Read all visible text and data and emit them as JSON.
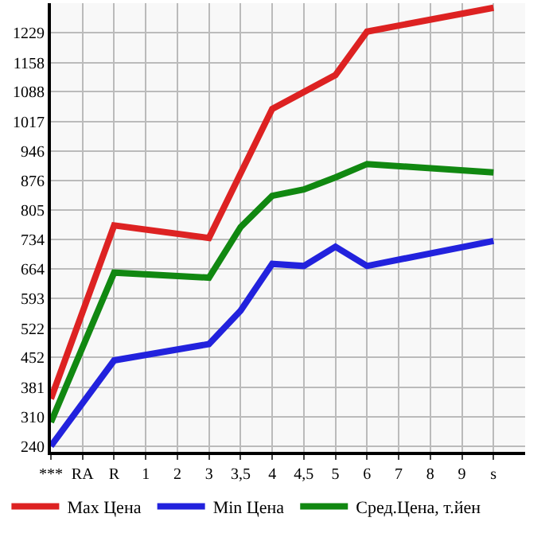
{
  "chart_data": {
    "type": "line",
    "categories": [
      "***",
      "RA",
      "R",
      "1",
      "2",
      "3",
      "3,5",
      "4",
      "4,5",
      "5",
      "6",
      "7",
      "8",
      "9",
      "s"
    ],
    "series": [
      {
        "name": "Max Цена",
        "color": "#dd2222",
        "values": [
          353,
          null,
          768,
          null,
          null,
          738,
          null,
          1047,
          null,
          1128,
          1232,
          null,
          null,
          null,
          1289
        ]
      },
      {
        "name": "Min Цена",
        "color": "#2222dd",
        "values": [
          240,
          null,
          445,
          null,
          null,
          484,
          564,
          676,
          671,
          717,
          671,
          null,
          null,
          null,
          731
        ]
      },
      {
        "name": "Сред.Цена, т.йен",
        "color": "#118811",
        "values": [
          297,
          null,
          655,
          null,
          null,
          643,
          764,
          839,
          854,
          883,
          915,
          null,
          null,
          null,
          895
        ]
      }
    ],
    "ylim": [
      226,
      1300
    ],
    "yticks": [
      240,
      310,
      381,
      452,
      522,
      593,
      664,
      734,
      805,
      876,
      946,
      1017,
      1088,
      1158,
      1229
    ],
    "grid": true,
    "legend": "bottom",
    "marker": "none",
    "line_style": "solid"
  }
}
